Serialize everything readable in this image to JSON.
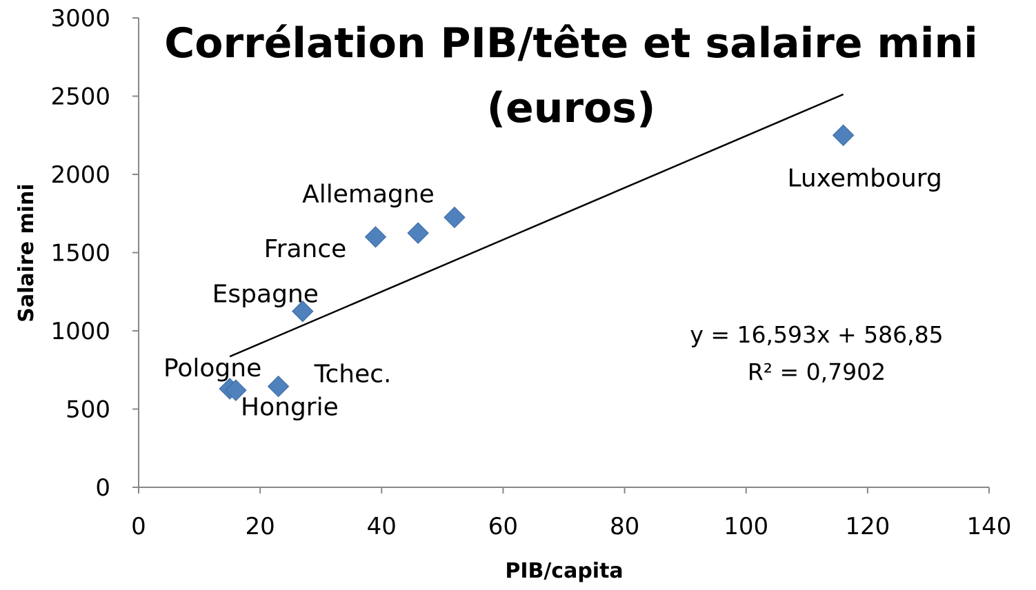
{
  "chart_data": {
    "type": "scatter",
    "title_lines": [
      "Corrélation PIB/tête et salaire mini",
      "(euros)"
    ],
    "xlabel": "PIB/capita",
    "ylabel": "Salaire mini",
    "xlim": [
      0,
      140
    ],
    "ylim": [
      0,
      3000
    ],
    "x_ticks": [
      0,
      20,
      40,
      60,
      80,
      100,
      120,
      140
    ],
    "y_ticks": [
      0,
      500,
      1000,
      1500,
      2000,
      2500,
      3000
    ],
    "grid": false,
    "legend": "none",
    "marker": "diamond",
    "marker_color": "#4f81bd",
    "points": [
      {
        "label": "Pologne",
        "x": 15,
        "y": 630
      },
      {
        "label": "Hongrie",
        "x": 16,
        "y": 620
      },
      {
        "label": "Tchec.",
        "x": 23,
        "y": 645
      },
      {
        "label": "Espagne",
        "x": 27,
        "y": 1125
      },
      {
        "label": "France",
        "x": 39,
        "y": 1600
      },
      {
        "label": "",
        "x": 46,
        "y": 1625
      },
      {
        "label": "Allemagne",
        "x": 52,
        "y": 1725
      },
      {
        "label": "Luxembourg",
        "x": 116,
        "y": 2250
      }
    ],
    "trendline": {
      "slope": 16.593,
      "intercept": 586.85,
      "x_range": [
        15,
        116
      ],
      "equation": "y = 16,593x + 586,85",
      "r2": "R² = 0,7902"
    }
  }
}
